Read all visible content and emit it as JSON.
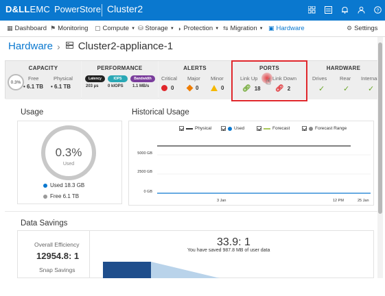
{
  "topbar": {
    "logo_dell": "D&LL",
    "logo_emc": "EMC",
    "product": "PowerStore",
    "cluster": "Cluster2",
    "icons": [
      "grid-icon",
      "list-icon",
      "bell-icon",
      "user-icon",
      "help-icon"
    ]
  },
  "nav": {
    "items": [
      {
        "label": "Dashboard",
        "icon": "dashboard-icon"
      },
      {
        "label": "Monitoring",
        "icon": "flag-icon"
      },
      {
        "label": "Compute",
        "icon": "compute-icon",
        "dropdown": true
      },
      {
        "label": "Storage",
        "icon": "storage-icon",
        "dropdown": true
      },
      {
        "label": "Protection",
        "icon": "shield-icon",
        "dropdown": true
      },
      {
        "label": "Migration",
        "icon": "migration-icon",
        "dropdown": true
      },
      {
        "label": "Hardware",
        "icon": "hardware-icon",
        "active": true
      }
    ],
    "settings": "Settings"
  },
  "breadcrumb": {
    "parent": "Hardware",
    "current": "Cluster2-appliance-1"
  },
  "capacity": {
    "title": "CAPACITY",
    "percent": "0.3%",
    "free_label": "Free",
    "free_value": "6.1 TB",
    "physical_label": "Physical",
    "physical_value": "6.1 TB"
  },
  "performance": {
    "title": "PERFORMANCE",
    "pills": [
      {
        "label": "Latency",
        "value": "203 µs",
        "color": "#222222"
      },
      {
        "label": "IOPS",
        "value": "0 kIOPS",
        "color": "#2aa8b5"
      },
      {
        "label": "Bandwidth",
        "value": "1.1 MB/s",
        "color": "#7a3d9c"
      }
    ]
  },
  "alerts": {
    "title": "ALERTS",
    "critical_label": "Critical",
    "critical_value": "0",
    "major_label": "Major",
    "major_value": "0",
    "minor_label": "Minor",
    "minor_value": "0"
  },
  "ports": {
    "title": "PORTS",
    "link_up_label": "Link Up",
    "link_up_value": "18",
    "link_down_label": "Link Down",
    "link_down_value": "2"
  },
  "hardware": {
    "title": "HARDWARE",
    "drives_label": "Drives",
    "rear_label": "Rear",
    "internal_label": "Internal"
  },
  "usage": {
    "title": "Usage",
    "percent": "0.3%",
    "used_label": "Used",
    "used_text": "Used 18.3 GB",
    "free_text": "Free 6.1 TB",
    "used_fraction": 0.003
  },
  "historical": {
    "title": "Historical Usage",
    "legend": [
      {
        "label": "Physical",
        "color": "#333333"
      },
      {
        "label": "Used",
        "color": "#0a78cf"
      },
      {
        "label": "Forecast",
        "color": "#a9c75a"
      },
      {
        "label": "Forecast Range",
        "color": "#888888"
      }
    ],
    "y_ticks": [
      "5000 GB",
      "2500 GB",
      "0 GB"
    ],
    "x_ticks": [
      "3 Jan",
      "12 PM",
      "25 Jan"
    ]
  },
  "data_savings": {
    "title": "Data Savings",
    "overall_label": "Overall Efficiency",
    "overall_value": "12954.8: 1",
    "snap_label": "Snap Savings",
    "ratio": "33.9: 1",
    "saved_text": "You have saved 987.8 MB of user data"
  },
  "colors": {
    "brand": "#0a78cf",
    "highlight": "#e0262b",
    "ok": "#6aa629",
    "link_down": "#e0262b"
  }
}
